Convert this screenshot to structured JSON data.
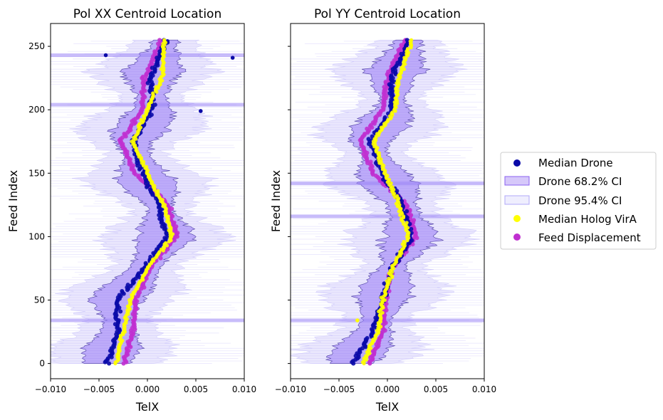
{
  "chart_data": [
    {
      "type": "scatter",
      "title": "Pol XX Centroid Location",
      "xlabel": "TelX",
      "ylabel": "Feed Index",
      "xlim": [
        -0.01,
        0.01
      ],
      "ylim": [
        -12,
        268
      ],
      "xticks": [
        -0.01,
        -0.005,
        0.0,
        0.005,
        0.01
      ],
      "xtick_labels": [
        "−0.010",
        "−0.005",
        "0.000",
        "0.005",
        "0.010"
      ],
      "yticks": [
        0,
        50,
        100,
        150,
        200,
        250
      ],
      "ytick_labels": [
        "0",
        "50",
        "100",
        "150",
        "200",
        "250"
      ],
      "flagged_rows": [
        34,
        204,
        243
      ],
      "outliers": [
        {
          "feed": 243,
          "x": -0.0043
        },
        {
          "feed": 241,
          "x": 0.0088
        },
        {
          "feed": 199,
          "x": 0.0055
        }
      ],
      "series": [
        {
          "name": "Median Drone",
          "feeds": [
            0,
            25,
            50,
            75,
            100,
            125,
            150,
            175,
            200,
            225,
            255
          ],
          "values": [
            -0.0042,
            -0.003,
            -0.0032,
            -0.0003,
            0.002,
            0.0012,
            -0.0005,
            -0.0015,
            0.0005,
            0.0003,
            0.0019
          ]
        },
        {
          "name": "Median Holog VirA",
          "feeds": [
            0,
            25,
            50,
            75,
            100,
            125,
            150,
            175,
            200,
            225,
            255
          ],
          "values": [
            -0.0033,
            -0.0025,
            -0.0018,
            0.0,
            0.0025,
            0.0017,
            0.0,
            -0.0015,
            0.0,
            0.0015,
            0.0018
          ]
        },
        {
          "name": "Feed Displacement",
          "feeds": [
            0,
            25,
            50,
            75,
            100,
            125,
            150,
            175,
            200,
            225,
            255
          ],
          "values": [
            -0.0025,
            -0.0015,
            -0.0012,
            0.0002,
            0.003,
            0.0022,
            -0.0013,
            -0.0028,
            -0.0005,
            -0.0003,
            0.0015
          ]
        }
      ]
    },
    {
      "type": "scatter",
      "title": "Pol YY Centroid Location",
      "xlabel": "TelX",
      "ylabel": "Feed Index",
      "xlim": [
        -0.01,
        0.01
      ],
      "ylim": [
        -12,
        268
      ],
      "xticks": [
        -0.01,
        -0.005,
        0.0,
        0.005,
        0.01
      ],
      "xtick_labels": [
        "−0.010",
        "−0.005",
        "0.000",
        "0.005",
        "0.010"
      ],
      "yticks": [
        0,
        50,
        100,
        150,
        200,
        250
      ],
      "flagged_rows": [
        34,
        116,
        142
      ],
      "outliers": [
        {
          "feed": 34,
          "x": -0.0031
        }
      ],
      "series": [
        {
          "name": "Median Drone",
          "feeds": [
            0,
            25,
            50,
            75,
            100,
            125,
            150,
            175,
            200,
            225,
            255
          ],
          "values": [
            -0.0037,
            -0.0015,
            -0.0005,
            0.0005,
            0.0025,
            0.0015,
            -0.0005,
            -0.0018,
            0.0005,
            0.0005,
            0.0022
          ]
        },
        {
          "name": "Median Holog VirA",
          "feeds": [
            0,
            25,
            50,
            75,
            100,
            125,
            150,
            175,
            200,
            225,
            255
          ],
          "values": [
            -0.0025,
            -0.001,
            -0.0005,
            0.0005,
            0.0022,
            0.0012,
            -0.0002,
            -0.0015,
            0.0008,
            0.0012,
            0.0025
          ]
        },
        {
          "name": "Feed Displacement",
          "feeds": [
            0,
            25,
            50,
            75,
            100,
            125,
            150,
            175,
            200,
            225,
            255
          ],
          "values": [
            -0.0018,
            -0.0005,
            -0.0002,
            0.0005,
            0.003,
            0.002,
            -0.0015,
            -0.0028,
            -0.0005,
            0.0,
            0.0018
          ]
        }
      ]
    }
  ],
  "legend": {
    "position": "right",
    "items": [
      {
        "label": "Median Drone",
        "kind": "dot",
        "color": "#0a0aa8"
      },
      {
        "label": "Drone 68.2% CI",
        "kind": "box",
        "color": "#8a60f0"
      },
      {
        "label": "Drone 95.4% CI",
        "kind": "box",
        "color": "#b0a8f8"
      },
      {
        "label": "Median Holog VirA",
        "kind": "dot",
        "color": "#ffff00"
      },
      {
        "label": "Feed Displacement",
        "kind": "dot",
        "color": "#c030d0"
      }
    ]
  },
  "colors": {
    "drone": "#0a0aa8",
    "ci68": "#6b3cf0",
    "ci95": "#b8b0f8",
    "holog": "#ffff00",
    "feed": "#c030d0",
    "flag": "#9b85f5"
  }
}
